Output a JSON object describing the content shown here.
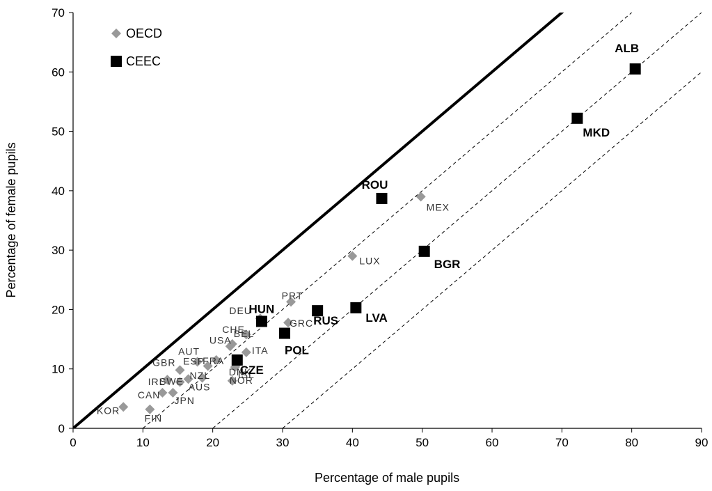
{
  "chart_data": {
    "type": "scatter",
    "xlabel": "Percentage of male pupils",
    "ylabel": "Percentage of female pupils",
    "xlim": [
      0,
      90
    ],
    "ylim": [
      0,
      70
    ],
    "xticks": [
      0,
      10,
      20,
      30,
      40,
      50,
      60,
      70,
      80,
      90
    ],
    "yticks": [
      0,
      10,
      20,
      30,
      40,
      50,
      60,
      70
    ],
    "grid": false,
    "legend_position": "top-left",
    "reference_lines": [
      {
        "offset": 0,
        "style": "solid-bold"
      },
      {
        "offset": 10,
        "style": "dashed"
      },
      {
        "offset": 20,
        "style": "dashed"
      },
      {
        "offset": 30,
        "style": "dashed"
      }
    ],
    "series": [
      {
        "name": "OECD",
        "marker": "diamond",
        "color": "#999999",
        "points": [
          {
            "label": "KOR",
            "x": 7.2,
            "y": 3.6
          },
          {
            "label": "FIN",
            "x": 11.0,
            "y": 3.2
          },
          {
            "label": "CAN",
            "x": 12.8,
            "y": 6.0
          },
          {
            "label": "JPN",
            "x": 14.3,
            "y": 6.0
          },
          {
            "label": "IRL",
            "x": 13.5,
            "y": 8.2
          },
          {
            "label": "SWE",
            "x": 15.3,
            "y": 7.8
          },
          {
            "label": "GBR",
            "x": 15.3,
            "y": 9.8
          },
          {
            "label": "AUT",
            "x": 17.8,
            "y": 11.2
          },
          {
            "label": "NZL",
            "x": 16.5,
            "y": 8.3
          },
          {
            "label": "AUS",
            "x": 18.5,
            "y": 8.5
          },
          {
            "label": "FRA",
            "x": 20.5,
            "y": 11.5
          },
          {
            "label": "ISL",
            "x": 22.8,
            "y": 8.0
          },
          {
            "label": "ESP",
            "x": 19.3,
            "y": 10.5
          },
          {
            "label": "USA",
            "x": 22.5,
            "y": 13.8
          },
          {
            "label": "BEL",
            "x": 22.8,
            "y": 14.2
          },
          {
            "label": "DNK",
            "x": 23.5,
            "y": 10.8
          },
          {
            "label": "NOR",
            "x": 23.2,
            "y": 10.3
          },
          {
            "label": "CHE",
            "x": 24.8,
            "y": 15.8
          },
          {
            "label": "DEU",
            "x": 26.8,
            "y": 18.5
          },
          {
            "label": "ITA",
            "x": 24.8,
            "y": 12.8
          },
          {
            "label": "PRT",
            "x": 31.2,
            "y": 21.3
          },
          {
            "label": "GRC",
            "x": 30.8,
            "y": 17.8
          },
          {
            "label": "LUX",
            "x": 40.0,
            "y": 29.0
          },
          {
            "label": "MEX",
            "x": 49.8,
            "y": 39.0
          }
        ]
      },
      {
        "name": "CEEC",
        "marker": "square",
        "color": "#000000",
        "points": [
          {
            "label": "CZE",
            "x": 23.5,
            "y": 11.5
          },
          {
            "label": "HUN",
            "x": 27.0,
            "y": 18.0
          },
          {
            "label": "POL",
            "x": 30.3,
            "y": 16.0
          },
          {
            "label": "RUS",
            "x": 35.0,
            "y": 19.8
          },
          {
            "label": "LVA",
            "x": 40.5,
            "y": 20.3
          },
          {
            "label": "ROU",
            "x": 44.2,
            "y": 38.7
          },
          {
            "label": "BGR",
            "x": 50.3,
            "y": 29.8
          },
          {
            "label": "MKD",
            "x": 72.2,
            "y": 52.2
          },
          {
            "label": "ALB",
            "x": 80.5,
            "y": 60.5
          }
        ]
      }
    ]
  }
}
